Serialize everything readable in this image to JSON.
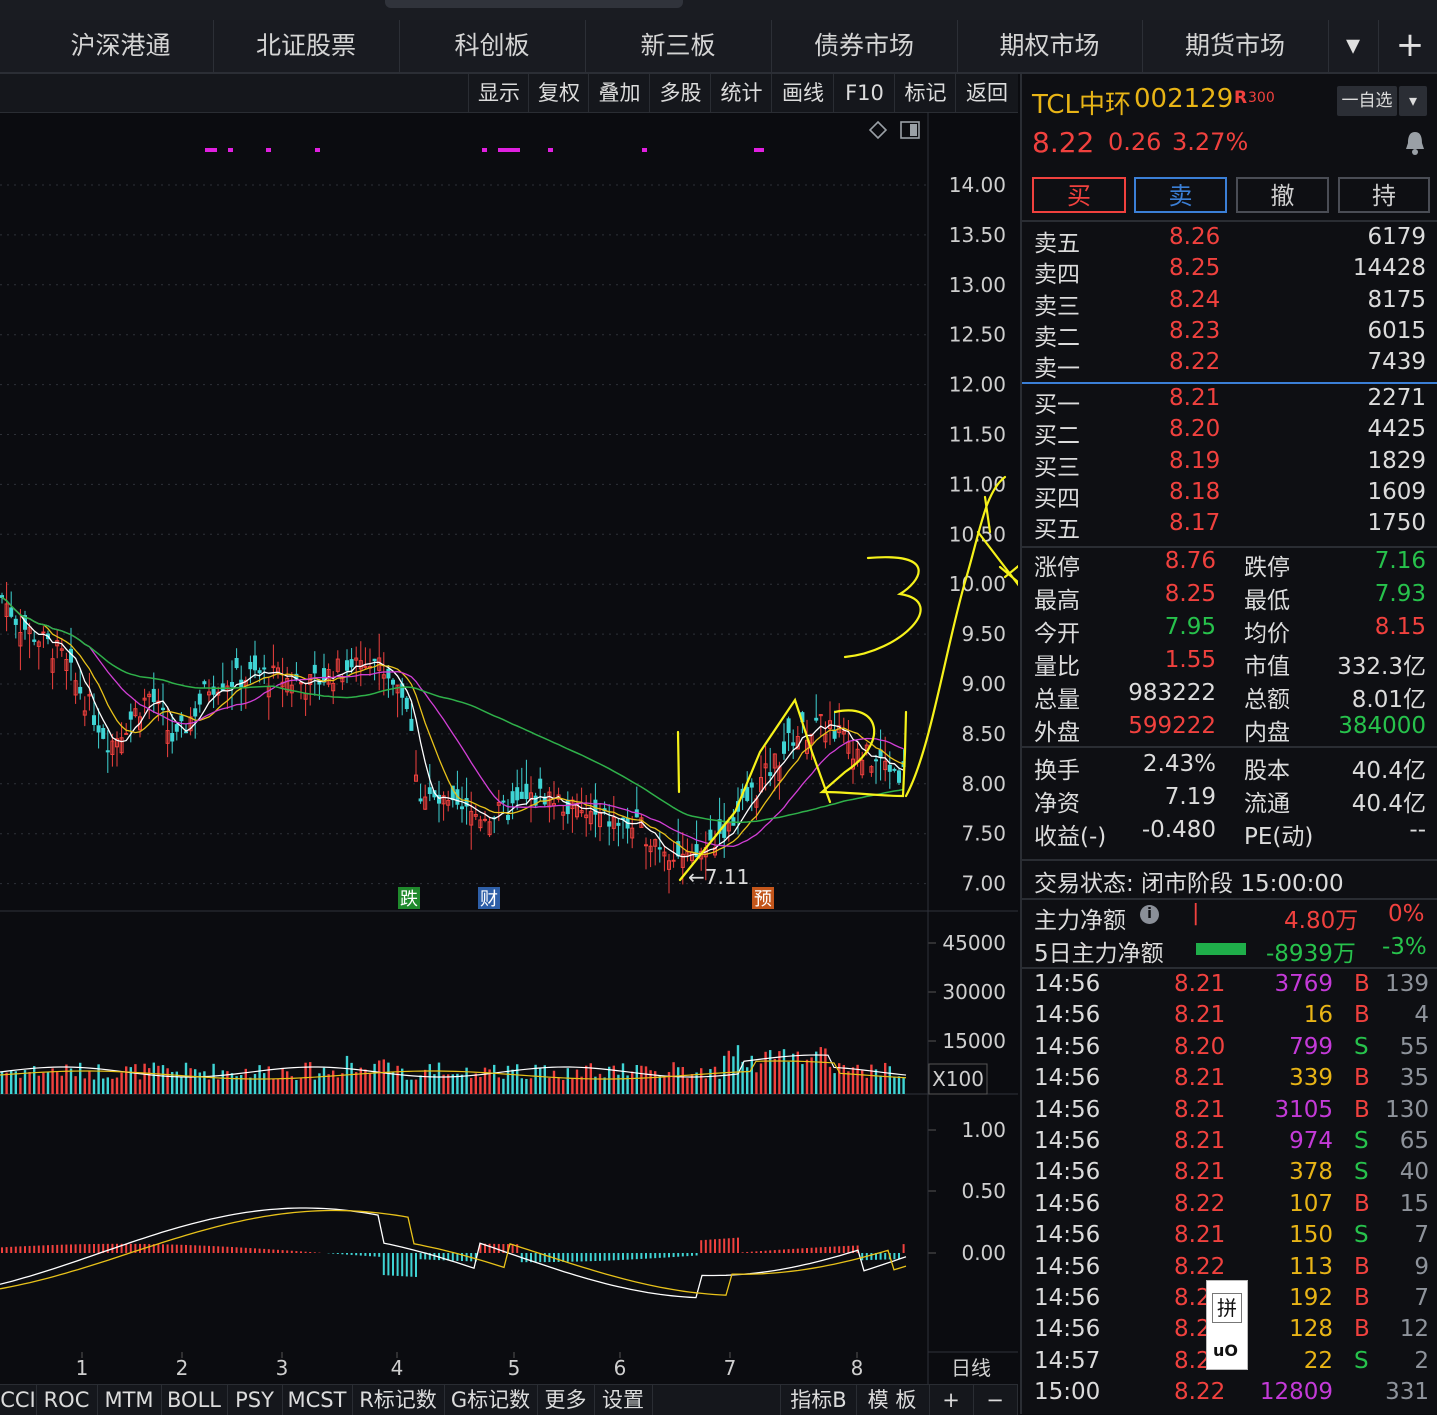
{
  "nav": {
    "tabs": [
      "沪深港通",
      "北证股票",
      "科创板",
      "新三板",
      "债券市场",
      "期权市场",
      "期货市场"
    ],
    "dropdown": "▾",
    "add": "+"
  },
  "toolbar": [
    "显示",
    "复权",
    "叠加",
    "多股",
    "统计",
    "画线",
    "F10",
    "标记",
    "返回"
  ],
  "chart": {
    "price_axis": [
      "14.00",
      "13.50",
      "13.00",
      "12.50",
      "12.00",
      "11.50",
      "11.00",
      "10.50",
      "10.00",
      "9.50",
      "9.00",
      "8.50",
      "8.00",
      "7.50",
      "7.00"
    ],
    "low_marker": "←7.11",
    "event_badges": [
      {
        "label": "跌",
        "color": "#1f8a2c"
      },
      {
        "label": "财",
        "color": "#2e5fa8"
      },
      {
        "label": "预",
        "color": "#c3561b"
      }
    ],
    "volume_axis": [
      "45000",
      "30000",
      "15000"
    ],
    "volume_unit": "X100",
    "macd_axis": [
      "1.00",
      "0.50",
      "0.00"
    ],
    "month_labels": [
      "1",
      "2",
      "3",
      "4",
      "5",
      "6",
      "7",
      "8"
    ],
    "period": "日线"
  },
  "indicator_tabs": [
    "CCI",
    "ROC",
    "MTM",
    "BOLL",
    "PSY",
    "MCST",
    "R标记数",
    "G标记数",
    "更多",
    "设置",
    "指标B",
    "模 板",
    "+",
    "−"
  ],
  "quote": {
    "name": "TCL中环",
    "code": "002129",
    "tag": "R",
    "tag_index": "300",
    "watch_btn": "一自选",
    "price": "8.22",
    "change": "0.26",
    "change_pct": "3.27%",
    "colors": {
      "up": "#f0413e",
      "down": "#27c24c"
    }
  },
  "trade_buttons": [
    "买",
    "卖",
    "撤",
    "持"
  ],
  "orderbook": {
    "asks": [
      {
        "label": "卖五",
        "price": "8.26",
        "vol": "6179"
      },
      {
        "label": "卖四",
        "price": "8.25",
        "vol": "14428"
      },
      {
        "label": "卖三",
        "price": "8.24",
        "vol": "8175"
      },
      {
        "label": "卖二",
        "price": "8.23",
        "vol": "6015"
      },
      {
        "label": "卖一",
        "price": "8.22",
        "vol": "7439"
      }
    ],
    "bids": [
      {
        "label": "买一",
        "price": "8.21",
        "vol": "2271"
      },
      {
        "label": "买二",
        "price": "8.20",
        "vol": "4425"
      },
      {
        "label": "买三",
        "price": "8.19",
        "vol": "1829"
      },
      {
        "label": "买四",
        "price": "8.18",
        "vol": "1609"
      },
      {
        "label": "买五",
        "price": "8.17",
        "vol": "1750"
      }
    ]
  },
  "stats": [
    [
      {
        "k": "涨停",
        "v": "8.76",
        "c": "red"
      },
      {
        "k": "跌停",
        "v": "7.16",
        "c": "green"
      }
    ],
    [
      {
        "k": "最高",
        "v": "8.25",
        "c": "red"
      },
      {
        "k": "最低",
        "v": "7.93",
        "c": "green"
      }
    ],
    [
      {
        "k": "今开",
        "v": "7.95",
        "c": "green"
      },
      {
        "k": "均价",
        "v": "8.15",
        "c": "red"
      }
    ],
    [
      {
        "k": "量比",
        "v": "1.55",
        "c": "red"
      },
      {
        "k": "市值",
        "v": "332.3亿",
        "c": "white"
      }
    ],
    [
      {
        "k": "总量",
        "v": "983222",
        "c": "white"
      },
      {
        "k": "总额",
        "v": "8.01亿",
        "c": "white"
      }
    ],
    [
      {
        "k": "外盘",
        "v": "599222",
        "c": "red"
      },
      {
        "k": "内盘",
        "v": "384000",
        "c": "green"
      }
    ]
  ],
  "stats2": [
    [
      {
        "k": "换手",
        "v": "2.43%"
      },
      {
        "k": "股本",
        "v": "40.4亿"
      }
    ],
    [
      {
        "k": "净资",
        "v": "7.19"
      },
      {
        "k": "流通",
        "v": "40.4亿"
      }
    ],
    [
      {
        "k": "收益(-)",
        "v": "-0.480"
      },
      {
        "k": "PE(动)",
        "v": "--"
      }
    ]
  ],
  "status": "交易状态: 闭市阶段 15:00:00",
  "flow": [
    {
      "label": "主力净额",
      "icon": "i",
      "bar": "|",
      "amount": "4.80万",
      "pct": "0%",
      "color": "#f0413e"
    },
    {
      "label": "5日主力净额",
      "amount": "-8939万",
      "pct": "-3%",
      "color": "#27c24c"
    }
  ],
  "ticks": [
    {
      "t": "14:56",
      "p": "8.21",
      "v": "3769",
      "s": "B",
      "n": "139",
      "vc": "purple"
    },
    {
      "t": "14:56",
      "p": "8.21",
      "v": "16",
      "s": "B",
      "n": "4",
      "vc": "orange"
    },
    {
      "t": "14:56",
      "p": "8.20",
      "v": "799",
      "s": "S",
      "n": "55",
      "vc": "purple"
    },
    {
      "t": "14:56",
      "p": "8.21",
      "v": "339",
      "s": "B",
      "n": "35",
      "vc": "orange"
    },
    {
      "t": "14:56",
      "p": "8.21",
      "v": "3105",
      "s": "B",
      "n": "130",
      "vc": "purple"
    },
    {
      "t": "14:56",
      "p": "8.21",
      "v": "974",
      "s": "S",
      "n": "65",
      "vc": "purple"
    },
    {
      "t": "14:56",
      "p": "8.21",
      "v": "378",
      "s": "S",
      "n": "40",
      "vc": "orange"
    },
    {
      "t": "14:56",
      "p": "8.22",
      "v": "107",
      "s": "B",
      "n": "15",
      "vc": "orange"
    },
    {
      "t": "14:56",
      "p": "8.21",
      "v": "150",
      "s": "S",
      "n": "7",
      "vc": "orange"
    },
    {
      "t": "14:56",
      "p": "8.22",
      "v": "113",
      "s": "B",
      "n": "9",
      "vc": "orange"
    },
    {
      "t": "14:56",
      "p": "8.2",
      "v": "192",
      "s": "B",
      "n": "7",
      "vc": "orange"
    },
    {
      "t": "14:56",
      "p": "8.2",
      "v": "128",
      "s": "B",
      "n": "12",
      "vc": "orange"
    },
    {
      "t": "14:57",
      "p": "8.2",
      "v": "22",
      "s": "S",
      "n": "2",
      "vc": "orange"
    },
    {
      "t": "15:00",
      "p": "8.22",
      "v": "12809",
      "s": "",
      "n": "331",
      "vc": "purple"
    }
  ],
  "ime_popup": {
    "char": "拼",
    "sub": "uO"
  },
  "handwriting_marks": [
    "1",
    "2",
    "3",
    "4",
    "5"
  ]
}
